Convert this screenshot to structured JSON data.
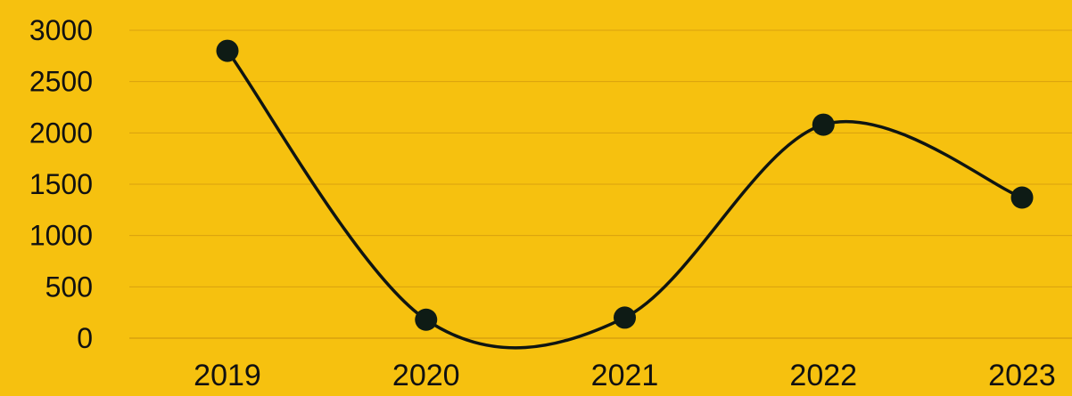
{
  "chart_data": {
    "type": "line",
    "title": "",
    "xlabel": "",
    "ylabel": "",
    "categories": [
      "2019",
      "2020",
      "2021",
      "2022",
      "2023"
    ],
    "series": [
      {
        "values": [
          2800,
          180,
          200,
          2080,
          1370
        ]
      }
    ],
    "ylim": [
      0,
      3000
    ],
    "yticks": [
      0,
      500,
      1000,
      1500,
      2000,
      2500,
      3000
    ],
    "grid": true,
    "legend": "none",
    "colors": {
      "background": "#F6C10F",
      "line": "#0F1512",
      "marker": "#0E1B15",
      "grid": "#D9A10F",
      "text": "#111111"
    }
  }
}
